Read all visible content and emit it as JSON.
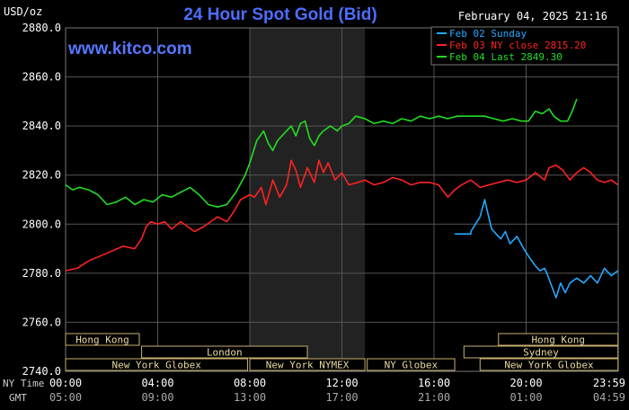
{
  "header": {
    "title": "24 Hour Spot Gold (Bid)",
    "unit": "USD/oz",
    "timestamp": "February 04, 2025 21:16",
    "site": "www.kitco.com"
  },
  "colors": {
    "title": "#4d6dff",
    "site": "#5577ff",
    "grid": "#555555",
    "text": "#ffffff",
    "shade": "#222222",
    "session_border": "#c8b070",
    "session_text": "#e8d8a0",
    "feb02": "#22aaff",
    "feb03": "#ff2222",
    "feb04": "#22dd22"
  },
  "chart_data": {
    "type": "line",
    "title": "24 Hour Spot Gold (Bid)",
    "ylabel": "USD/oz",
    "ylim": [
      2740,
      2880
    ],
    "yticks": [
      "2880.0",
      "2860.0",
      "2840.0",
      "2820.0",
      "2800.0",
      "2780.0",
      "2760.0",
      "2740.0"
    ],
    "xlim": [
      0,
      24
    ],
    "ny_label": "NY Time",
    "gmt_label": "GMT",
    "ny_ticks": [
      "00:00",
      "04:00",
      "08:00",
      "12:00",
      "16:00",
      "20:00",
      "23:59"
    ],
    "gmt_ticks": [
      "05:00",
      "09:00",
      "13:00",
      "17:00",
      "21:00",
      "01:00",
      "04:59"
    ],
    "shaded_range": [
      8,
      13
    ],
    "legend": [
      {
        "label": "Feb 02 Sunday",
        "color": "#22aaff"
      },
      {
        "label": "Feb 03 NY close 2815.20",
        "color": "#ff2222"
      },
      {
        "label": "Feb 04 Last 2849.30",
        "color": "#22dd22"
      }
    ],
    "sessions": [
      {
        "label": "Hong Kong",
        "start": 0,
        "end": 3.2,
        "row": 0
      },
      {
        "label": "Hong Kong",
        "start": 18.8,
        "end": 23.99,
        "row": 0
      },
      {
        "label": "London",
        "start": 3.3,
        "end": 10.5,
        "row": 1
      },
      {
        "label": "Sydney",
        "start": 17.3,
        "end": 23.99,
        "row": 1
      },
      {
        "label": "New York Globex",
        "start": 0,
        "end": 7.9,
        "row": 2
      },
      {
        "label": "New York NYMEX",
        "start": 8,
        "end": 13,
        "row": 2
      },
      {
        "label": "NY Globex",
        "start": 13.1,
        "end": 16.9,
        "row": 2
      },
      {
        "label": "New York Globex",
        "start": 18,
        "end": 23.99,
        "row": 2
      }
    ],
    "series": [
      {
        "name": "Feb 02 Sunday",
        "color": "#22aaff",
        "x": [
          16.9,
          17.6,
          17.6,
          18.0,
          18.2,
          18.3,
          18.5,
          18.7,
          18.9,
          19.1,
          19.3,
          19.6,
          19.9,
          20.1,
          20.4,
          20.6,
          20.8,
          20.9,
          21.1,
          21.3,
          21.5,
          21.7,
          21.9,
          22.2,
          22.5,
          22.8,
          23.1,
          23.4,
          23.7,
          23.99
        ],
        "y": [
          2796,
          2796,
          2797,
          2803,
          2810,
          2806,
          2798,
          2796,
          2794,
          2797,
          2792,
          2795,
          2790,
          2787,
          2783,
          2781,
          2782,
          2780,
          2775,
          2770,
          2776,
          2772,
          2776,
          2778,
          2776,
          2779,
          2776,
          2782,
          2779,
          2781
        ]
      },
      {
        "name": "Feb 03 NY close 2815.20",
        "color": "#ff2222",
        "x": [
          0,
          0.5,
          1.0,
          1.5,
          2.0,
          2.5,
          3.0,
          3.3,
          3.5,
          3.7,
          4.0,
          4.3,
          4.6,
          5.0,
          5.3,
          5.6,
          6.0,
          6.3,
          6.6,
          7.0,
          7.3,
          7.6,
          8.0,
          8.2,
          8.5,
          8.7,
          9.0,
          9.3,
          9.6,
          9.8,
          10.0,
          10.2,
          10.5,
          10.8,
          11.0,
          11.2,
          11.4,
          11.7,
          12.0,
          12.3,
          12.7,
          13.0,
          13.4,
          13.8,
          14.2,
          14.6,
          15.0,
          15.4,
          15.8,
          16.2,
          16.6,
          16.9,
          17.2,
          17.6,
          18.0,
          18.4,
          18.8,
          19.2,
          19.6,
          20.0,
          20.4,
          20.8,
          21.0,
          21.3,
          21.6,
          21.9,
          22.2,
          22.5,
          22.8,
          23.1,
          23.4,
          23.7,
          23.99
        ],
        "y": [
          2781,
          2782,
          2785,
          2787,
          2789,
          2791,
          2790,
          2794,
          2799,
          2801,
          2800,
          2801,
          2798,
          2801,
          2799,
          2797,
          2799,
          2801,
          2803,
          2801,
          2805,
          2810,
          2812,
          2811,
          2815,
          2808,
          2818,
          2811,
          2816,
          2826,
          2822,
          2815,
          2823,
          2817,
          2826,
          2821,
          2825,
          2818,
          2821,
          2816,
          2817,
          2818,
          2816,
          2817,
          2819,
          2818,
          2816,
          2817,
          2817,
          2816,
          2811,
          2814,
          2816,
          2818,
          2815,
          2816,
          2817,
          2818,
          2817,
          2818,
          2821,
          2818,
          2823,
          2824,
          2822,
          2818,
          2821,
          2823,
          2821,
          2818,
          2817,
          2818,
          2816
        ]
      },
      {
        "name": "Feb 04 Last 2849.30",
        "color": "#22dd22",
        "x": [
          0,
          0.3,
          0.6,
          1.0,
          1.4,
          1.8,
          2.2,
          2.6,
          3.0,
          3.4,
          3.8,
          4.2,
          4.6,
          5.0,
          5.4,
          5.8,
          6.2,
          6.6,
          7.0,
          7.4,
          7.8,
          8.0,
          8.3,
          8.6,
          8.8,
          9.0,
          9.2,
          9.5,
          9.8,
          10.0,
          10.2,
          10.4,
          10.6,
          10.8,
          11.0,
          11.2,
          11.5,
          11.8,
          12.0,
          12.3,
          12.6,
          13.0,
          13.4,
          13.8,
          14.2,
          14.6,
          15.0,
          15.4,
          15.8,
          16.2,
          16.6,
          17.0,
          17.4,
          17.8,
          18.2,
          18.6,
          19.0,
          19.4,
          19.8,
          20.1,
          20.4,
          20.7,
          21.0,
          21.2,
          21.5,
          21.8,
          22.0,
          22.2
        ],
        "y": [
          2816,
          2814,
          2815,
          2814,
          2812,
          2808,
          2809,
          2811,
          2808,
          2810,
          2809,
          2812,
          2811,
          2813,
          2815,
          2812,
          2808,
          2807,
          2808,
          2813,
          2820,
          2825,
          2834,
          2838,
          2833,
          2830,
          2834,
          2837,
          2840,
          2836,
          2841,
          2842,
          2835,
          2832,
          2836,
          2838,
          2840,
          2838,
          2840,
          2841,
          2844,
          2843,
          2841,
          2842,
          2841,
          2843,
          2842,
          2844,
          2843,
          2844,
          2843,
          2844,
          2844,
          2844,
          2844,
          2843,
          2842,
          2843,
          2842,
          2842,
          2846,
          2845,
          2847,
          2844,
          2842,
          2842,
          2846,
          2851
        ]
      }
    ]
  }
}
